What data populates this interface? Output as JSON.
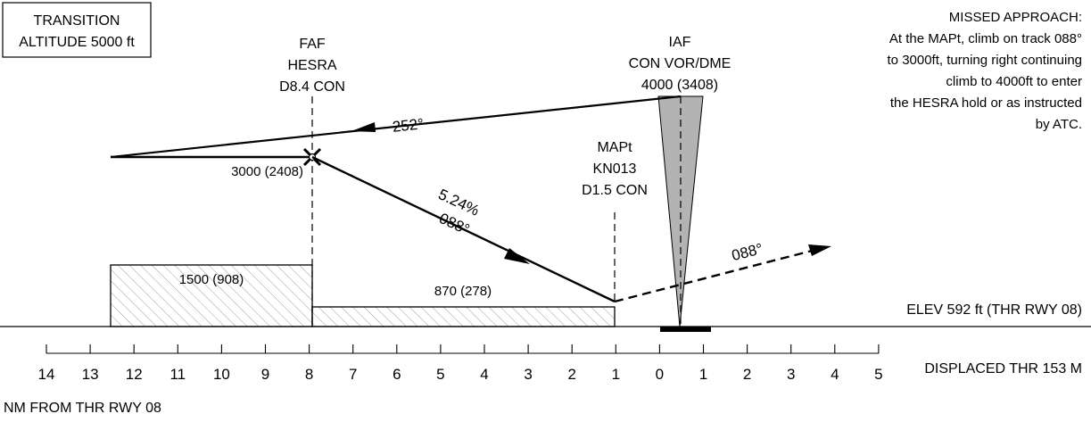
{
  "transition_box": {
    "line1": "TRANSITION",
    "line2": "ALTITUDE 5000 ft"
  },
  "faf": {
    "line1": "FAF",
    "line2": "HESRA",
    "line3": "D8.4 CON"
  },
  "iaf": {
    "line1": "IAF",
    "line2": "CON VOR/DME",
    "line3": "4000 (3408)"
  },
  "mapt": {
    "line1": "MAPt",
    "line2": "KN013",
    "line3": "D1.5 CON"
  },
  "missed_approach": [
    "MISSED APPROACH:",
    "At the MAPt, climb on track 088°",
    "to 3000ft, turning right continuing",
    "climb to 4000ft to enter",
    "the HESRA hold or as instructed",
    "by ATC."
  ],
  "inbound_track": "252°",
  "faf_altitude": "3000 (2408)",
  "descent_gradient": "5.24%",
  "final_track": "088°",
  "missed_track": "088°",
  "obstacle_left": "1500 (908)",
  "obstacle_right": "870 (278)",
  "elevation": "ELEV 592 ft (THR RWY 08)",
  "displaced_thr": "DISPLACED THR 153 M",
  "scale": {
    "label": "NM FROM THR RWY 08",
    "ticks": [
      "14",
      "13",
      "12",
      "11",
      "10",
      "9",
      "8",
      "7",
      "6",
      "5",
      "4",
      "3",
      "2",
      "1",
      "0",
      "1",
      "2",
      "3",
      "4",
      "5"
    ]
  }
}
